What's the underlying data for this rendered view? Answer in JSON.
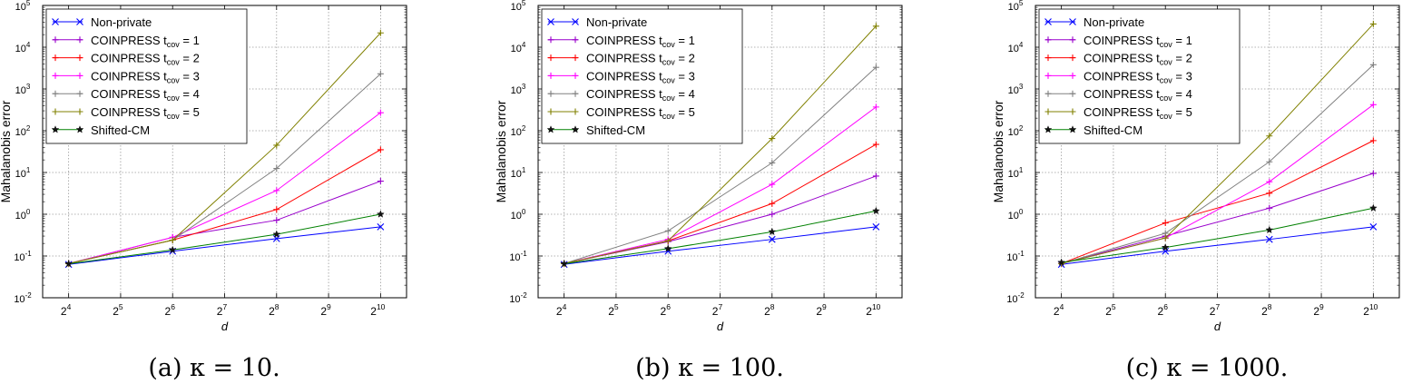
{
  "figure": {
    "ylabel": "Mahalanobis error",
    "xlabel": "d",
    "legend_position": "top-left",
    "xticks": [
      {
        "base": "2",
        "exp": "4"
      },
      {
        "base": "2",
        "exp": "5"
      },
      {
        "base": "2",
        "exp": "6"
      },
      {
        "base": "2",
        "exp": "7"
      },
      {
        "base": "2",
        "exp": "8"
      },
      {
        "base": "2",
        "exp": "9"
      },
      {
        "base": "2",
        "exp": "10"
      }
    ],
    "yticks": [
      {
        "base": "10",
        "exp": "-2"
      },
      {
        "base": "10",
        "exp": "-1"
      },
      {
        "base": "10",
        "exp": "0"
      },
      {
        "base": "10",
        "exp": "1"
      },
      {
        "base": "10",
        "exp": "2"
      },
      {
        "base": "10",
        "exp": "3"
      },
      {
        "base": "10",
        "exp": "4"
      },
      {
        "base": "10",
        "exp": "5"
      }
    ],
    "legend": [
      {
        "label": "Non-private",
        "sub": "",
        "suffix": ""
      },
      {
        "label": "COINPRESS t",
        "sub": "cov",
        "suffix": " = 1"
      },
      {
        "label": "COINPRESS t",
        "sub": "cov",
        "suffix": " = 2"
      },
      {
        "label": "COINPRESS t",
        "sub": "cov",
        "suffix": " = 3"
      },
      {
        "label": "COINPRESS t",
        "sub": "cov",
        "suffix": " = 4"
      },
      {
        "label": "COINPRESS t",
        "sub": "cov",
        "suffix": " = 5"
      },
      {
        "label": "Shifted-CM",
        "sub": "",
        "suffix": ""
      }
    ],
    "colors": [
      "#0000ff",
      "#9900cc",
      "#ff0000",
      "#ff00ff",
      "#808080",
      "#808000",
      "#008000"
    ]
  },
  "chart_data": [
    {
      "type": "line",
      "caption": "(a) κ = 10.",
      "x_log2": [
        4,
        6,
        8,
        10
      ],
      "xlim_log2": [
        3.5,
        10.5
      ],
      "ylim_log10": [
        -2,
        5
      ],
      "grid": true,
      "series": [
        {
          "name": "Non-private",
          "values": [
            0.063,
            0.13,
            0.26,
            0.5
          ]
        },
        {
          "name": "COINPRESS t_cov = 1",
          "values": [
            0.066,
            0.28,
            0.72,
            6.2
          ]
        },
        {
          "name": "COINPRESS t_cov = 2",
          "values": [
            0.066,
            0.24,
            1.3,
            35
          ]
        },
        {
          "name": "COINPRESS t_cov = 3",
          "values": [
            0.066,
            0.28,
            3.7,
            270
          ]
        },
        {
          "name": "COINPRESS t_cov = 4",
          "values": [
            0.066,
            0.24,
            12.5,
            2300
          ]
        },
        {
          "name": "COINPRESS t_cov = 5",
          "values": [
            0.066,
            0.24,
            45,
            22000
          ]
        },
        {
          "name": "Shifted-CM",
          "values": [
            0.065,
            0.14,
            0.33,
            1.0
          ]
        }
      ]
    },
    {
      "type": "line",
      "caption": "(b) κ = 100.",
      "x_log2": [
        4,
        6,
        8,
        10
      ],
      "xlim_log2": [
        3.5,
        10.5
      ],
      "ylim_log10": [
        -2,
        5
      ],
      "grid": true,
      "series": [
        {
          "name": "Non-private",
          "values": [
            0.063,
            0.13,
            0.25,
            0.5
          ]
        },
        {
          "name": "COINPRESS t_cov = 1",
          "values": [
            0.066,
            0.22,
            1.0,
            8.2
          ]
        },
        {
          "name": "COINPRESS t_cov = 2",
          "values": [
            0.066,
            0.23,
            1.8,
            47
          ]
        },
        {
          "name": "COINPRESS t_cov = 3",
          "values": [
            0.066,
            0.25,
            5.2,
            370
          ]
        },
        {
          "name": "COINPRESS t_cov = 4",
          "values": [
            0.066,
            0.4,
            17,
            3300
          ]
        },
        {
          "name": "COINPRESS t_cov = 5",
          "values": [
            0.066,
            0.23,
            65,
            32000
          ]
        },
        {
          "name": "Shifted-CM",
          "values": [
            0.065,
            0.15,
            0.38,
            1.2
          ]
        }
      ]
    },
    {
      "type": "line",
      "caption": "(c) κ = 1000.",
      "x_log2": [
        4,
        6,
        8,
        10
      ],
      "xlim_log2": [
        3.5,
        10.5
      ],
      "ylim_log10": [
        -2,
        5
      ],
      "grid": true,
      "series": [
        {
          "name": "Non-private",
          "values": [
            0.063,
            0.13,
            0.25,
            0.5
          ]
        },
        {
          "name": "COINPRESS t_cov = 1",
          "values": [
            0.066,
            0.3,
            1.4,
            9.5
          ]
        },
        {
          "name": "COINPRESS t_cov = 2",
          "values": [
            0.066,
            0.62,
            3.2,
            58
          ]
        },
        {
          "name": "COINPRESS t_cov = 3",
          "values": [
            0.066,
            0.27,
            6.0,
            420
          ]
        },
        {
          "name": "COINPRESS t_cov = 4",
          "values": [
            0.066,
            0.35,
            18,
            3800
          ]
        },
        {
          "name": "COINPRESS t_cov = 5",
          "values": [
            0.066,
            0.27,
            75,
            36000
          ]
        },
        {
          "name": "Shifted-CM",
          "values": [
            0.07,
            0.16,
            0.42,
            1.4
          ]
        }
      ]
    }
  ]
}
